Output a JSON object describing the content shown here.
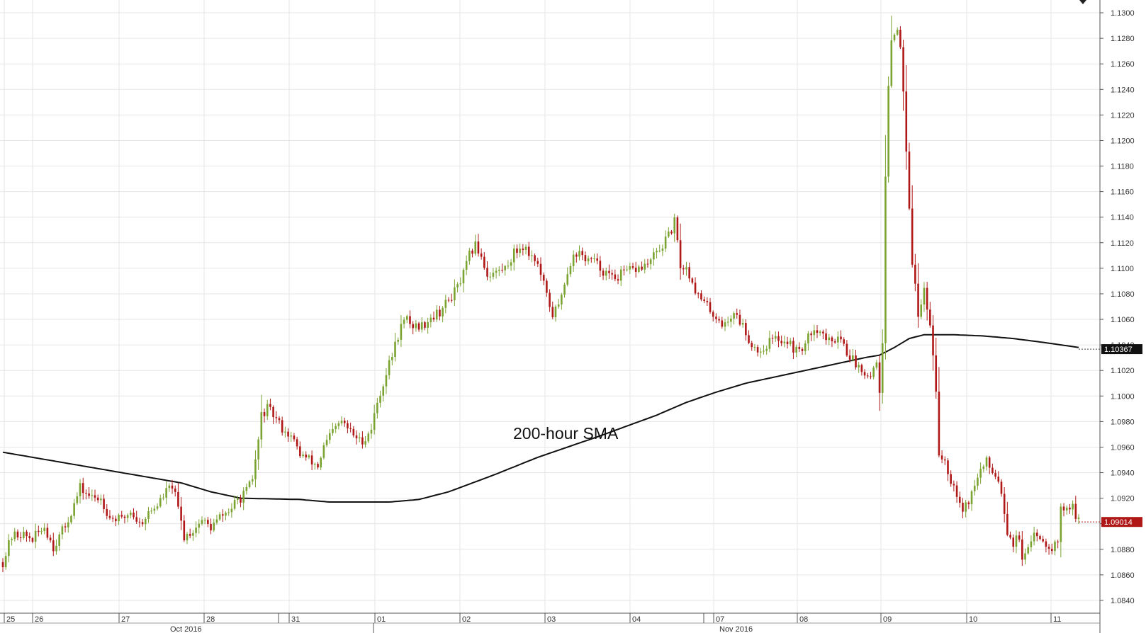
{
  "chart_data": {
    "type": "candlestick",
    "instrument_timeframe": "hourly",
    "ylim": [
      1.083,
      1.131
    ],
    "y_ticks": [
      "1.1300",
      "1.1280",
      "1.1260",
      "1.1240",
      "1.1220",
      "1.1200",
      "1.1180",
      "1.1160",
      "1.1140",
      "1.1120",
      "1.1100",
      "1.1080",
      "1.1060",
      "1.1040",
      "1.1020",
      "1.1000",
      "1.0980",
      "1.0960",
      "1.0940",
      "1.0920",
      "1.0900",
      "1.0880",
      "1.0860",
      "1.0840"
    ],
    "x_day_labels": [
      "25",
      "26",
      "27",
      "28",
      "31",
      "01",
      "02",
      "03",
      "04",
      "07",
      "08",
      "09",
      "10",
      "11"
    ],
    "x_month_labels": [
      "Oct 2016",
      "Nov 2016"
    ],
    "annotation": "200-hour SMA",
    "sma_last_label": "1.10367",
    "price_last_label": "1.09014",
    "sma_last_value": 1.10367,
    "price_last_value": 1.09014,
    "colors": {
      "up": "#7aa331",
      "down": "#b01818",
      "sma": "#111111",
      "grid": "#e6e6e6"
    },
    "price_path": [
      [
        0,
        1.087
      ],
      [
        3,
        1.089
      ],
      [
        6,
        1.0892
      ],
      [
        10,
        1.0888
      ],
      [
        14,
        1.0898
      ],
      [
        17,
        1.0882
      ],
      [
        21,
        1.0898
      ],
      [
        24,
        1.0915
      ],
      [
        26,
        1.0928
      ],
      [
        30,
        1.092
      ],
      [
        33,
        1.092
      ],
      [
        36,
        1.0905
      ],
      [
        40,
        1.0903
      ],
      [
        43,
        1.091
      ],
      [
        46,
        1.09
      ],
      [
        49,
        1.0908
      ],
      [
        52,
        1.0915
      ],
      [
        55,
        1.0925
      ],
      [
        57,
        1.093
      ],
      [
        59,
        1.0912
      ],
      [
        61,
        1.089
      ],
      [
        64,
        1.0895
      ],
      [
        67,
        1.0903
      ],
      [
        70,
        1.0897
      ],
      [
        73,
        1.0905
      ],
      [
        76,
        1.091
      ],
      [
        79,
        1.0918
      ],
      [
        82,
        1.0925
      ],
      [
        84,
        1.0935
      ],
      [
        86,
        1.0965
      ],
      [
        87,
        1.0985
      ],
      [
        89,
        1.099
      ],
      [
        91,
        1.0985
      ],
      [
        94,
        1.0975
      ],
      [
        97,
        1.0968
      ],
      [
        100,
        1.0955
      ],
      [
        103,
        1.095
      ],
      [
        106,
        1.0945
      ],
      [
        108,
        1.096
      ],
      [
        111,
        1.0972
      ],
      [
        114,
        1.098
      ],
      [
        117,
        1.0972
      ],
      [
        120,
        1.0965
      ],
      [
        122,
        1.0967
      ],
      [
        124,
        1.0975
      ],
      [
        126,
        1.0995
      ],
      [
        128,
        1.101
      ],
      [
        130,
        1.1025
      ],
      [
        132,
        1.104
      ],
      [
        134,
        1.1055
      ],
      [
        136,
        1.106
      ],
      [
        138,
        1.1055
      ],
      [
        141,
        1.1055
      ],
      [
        144,
        1.1062
      ],
      [
        147,
        1.1066
      ],
      [
        150,
        1.1075
      ],
      [
        153,
        1.1085
      ],
      [
        155,
        1.1095
      ],
      [
        157,
        1.111
      ],
      [
        159,
        1.1118
      ],
      [
        161,
        1.111
      ],
      [
        163,
        1.1095
      ],
      [
        166,
        1.1097
      ],
      [
        169,
        1.11
      ],
      [
        172,
        1.1112
      ],
      [
        175,
        1.1118
      ],
      [
        177,
        1.1112
      ],
      [
        179,
        1.1108
      ],
      [
        181,
        1.1095
      ],
      [
        183,
        1.1078
      ],
      [
        185,
        1.1064
      ],
      [
        187,
        1.107
      ],
      [
        189,
        1.109
      ],
      [
        191,
        1.1105
      ],
      [
        193,
        1.1112
      ],
      [
        196,
        1.1108
      ],
      [
        199,
        1.1105
      ],
      [
        202,
        1.1098
      ],
      [
        205,
        1.1092
      ],
      [
        208,
        1.1095
      ],
      [
        211,
        1.1098
      ],
      [
        214,
        1.11
      ],
      [
        217,
        1.1103
      ],
      [
        220,
        1.1112
      ],
      [
        222,
        1.1118
      ],
      [
        224,
        1.1125
      ],
      [
        226,
        1.1136
      ],
      [
        228,
        1.1102
      ],
      [
        230,
        1.11
      ],
      [
        232,
        1.109
      ],
      [
        234,
        1.1078
      ],
      [
        237,
        1.107
      ],
      [
        240,
        1.1062
      ],
      [
        243,
        1.1055
      ],
      [
        246,
        1.1066
      ],
      [
        249,
        1.1055
      ],
      [
        252,
        1.104
      ],
      [
        255,
        1.1035
      ],
      [
        258,
        1.1043
      ],
      [
        261,
        1.1045
      ],
      [
        264,
        1.1043
      ],
      [
        267,
        1.1035
      ],
      [
        270,
        1.104
      ],
      [
        273,
        1.1055
      ],
      [
        276,
        1.1048
      ],
      [
        279,
        1.104
      ],
      [
        281,
        1.105
      ],
      [
        284,
        1.1035
      ],
      [
        287,
        1.1025
      ],
      [
        290,
        1.102
      ],
      [
        292,
        1.1015
      ],
      [
        294,
        1.103
      ],
      [
        295,
        1.1
      ],
      [
        296,
        1.104
      ],
      [
        297,
        1.117
      ],
      [
        298,
        1.124
      ],
      [
        299,
        1.1278
      ],
      [
        301,
        1.129
      ],
      [
        302,
        1.127
      ],
      [
        303,
        1.124
      ],
      [
        305,
        1.115
      ],
      [
        306,
        1.1105
      ],
      [
        307,
        1.109
      ],
      [
        308,
        1.106
      ],
      [
        310,
        1.1085
      ],
      [
        312,
        1.1055
      ],
      [
        313,
        1.1035
      ],
      [
        314,
        1.1
      ],
      [
        315,
        1.0955
      ],
      [
        317,
        1.095
      ],
      [
        319,
        1.0935
      ],
      [
        321,
        1.0925
      ],
      [
        323,
        1.0912
      ],
      [
        325,
        1.0918
      ],
      [
        327,
        1.093
      ],
      [
        329,
        1.0942
      ],
      [
        331,
        1.0948
      ],
      [
        333,
        1.0942
      ],
      [
        335,
        1.0935
      ],
      [
        336,
        1.0925
      ],
      [
        337,
        1.091
      ],
      [
        338,
        1.0895
      ],
      [
        340,
        1.0885
      ],
      [
        342,
        1.089
      ],
      [
        343,
        1.087
      ],
      [
        345,
        1.0878
      ],
      [
        347,
        1.0895
      ],
      [
        349,
        1.089
      ],
      [
        351,
        1.0885
      ],
      [
        353,
        1.0882
      ],
      [
        355,
        1.0888
      ],
      [
        356,
        1.091
      ],
      [
        358,
        1.0915
      ],
      [
        360,
        1.0912
      ],
      [
        362,
        1.0901
      ]
    ],
    "sma_path": [
      [
        0,
        1.0956
      ],
      [
        20,
        1.0948
      ],
      [
        40,
        1.094
      ],
      [
        60,
        1.0932
      ],
      [
        70,
        1.0925
      ],
      [
        80,
        1.092
      ],
      [
        100,
        1.0919
      ],
      [
        110,
        1.0917
      ],
      [
        130,
        1.0917
      ],
      [
        140,
        1.0919
      ],
      [
        150,
        1.0925
      ],
      [
        165,
        1.0938
      ],
      [
        180,
        1.0952
      ],
      [
        200,
        1.0968
      ],
      [
        220,
        1.0985
      ],
      [
        230,
        1.0995
      ],
      [
        240,
        1.1003
      ],
      [
        250,
        1.101
      ],
      [
        260,
        1.1015
      ],
      [
        270,
        1.102
      ],
      [
        280,
        1.1025
      ],
      [
        290,
        1.103
      ],
      [
        295,
        1.1032
      ],
      [
        300,
        1.1038
      ],
      [
        305,
        1.1045
      ],
      [
        310,
        1.1048
      ],
      [
        320,
        1.1048
      ],
      [
        330,
        1.1047
      ],
      [
        340,
        1.1045
      ],
      [
        350,
        1.1042
      ],
      [
        362,
        1.1038
      ]
    ]
  }
}
